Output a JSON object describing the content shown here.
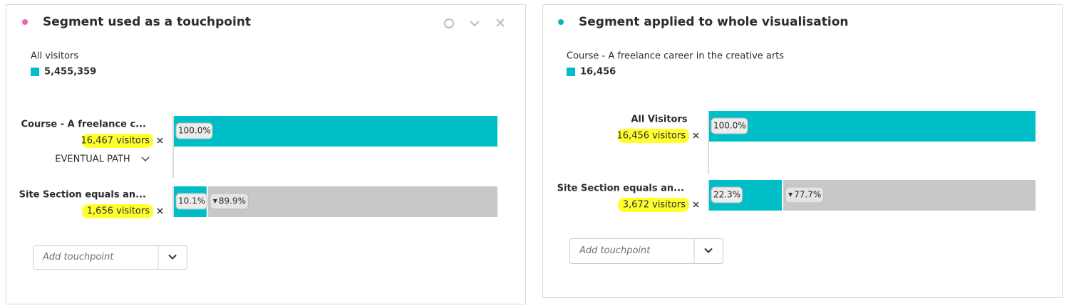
{
  "panels": [
    {
      "title": "Segment used as a touchpoint",
      "summary_label": "All visitors",
      "summary_value": "5,455,359",
      "path_label": "EVENTUAL PATH",
      "add_touchpoint": "Add touchpoint",
      "steps": [
        {
          "name": "Course - A freelance c...",
          "visitors": "16,467 visitors",
          "percent": 100,
          "percent_label": "100.0%"
        },
        {
          "name": "Site Section equals an...",
          "visitors": "1,656 visitors",
          "percent": 10.1,
          "percent_label": "10.1%",
          "drop_percent": 89.9,
          "drop_label": "89.9%"
        }
      ]
    },
    {
      "title": "Segment applied to whole visualisation",
      "summary_label": "Course - A freelance career in the creative arts",
      "summary_value": "16,456",
      "add_touchpoint": "Add touchpoint",
      "steps": [
        {
          "name": "All Visitors",
          "visitors": "16,456 visitors",
          "percent": 100,
          "percent_label": "100.0%"
        },
        {
          "name": "Site Section equals an...",
          "visitors": "3,672 visitors",
          "percent": 22.3,
          "percent_label": "22.3%",
          "drop_percent": 77.7,
          "drop_label": "77.7%"
        }
      ]
    }
  ]
}
